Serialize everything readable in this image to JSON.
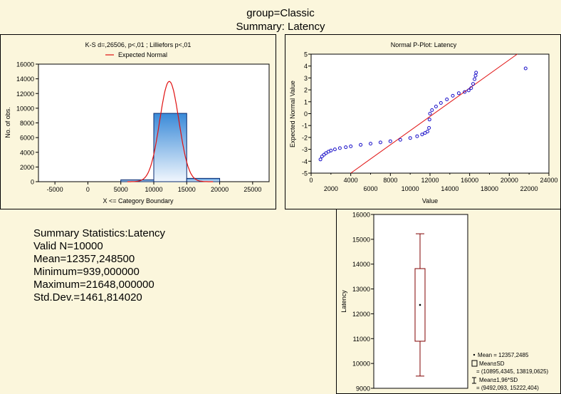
{
  "header": {
    "group": "group=Classic",
    "summary": "Summary: Latency"
  },
  "colors": {
    "bar_top": "#3a8ad8",
    "bar_bottom": "#f0f6fd",
    "curve": "#e01010",
    "points": "#1a10c8",
    "line": "#e01010",
    "box": "#800000"
  },
  "chart_data": [
    {
      "type": "bar",
      "title": "K-S d=,26506, p<,01 ; Lilliefors p<,01",
      "xlabel": "X <= Category Boundary",
      "ylabel": "No. of obs.",
      "legend": "Expected Normal",
      "legend_placement": "top",
      "grid": false,
      "xlim": [
        -7500,
        27500
      ],
      "ylim": [
        0,
        16000
      ],
      "xticks": [
        "-5000",
        "0",
        "5000",
        "10000",
        "15000",
        "20000",
        "25000"
      ],
      "yticks": [
        "0",
        "2000",
        "4000",
        "6000",
        "8000",
        "10000",
        "12000",
        "14000",
        "16000"
      ],
      "bins": [
        {
          "from": 5000,
          "to": 10000,
          "value": 250
        },
        {
          "from": 10000,
          "to": 15000,
          "value": 9300
        },
        {
          "from": 15000,
          "to": 20000,
          "value": 450
        }
      ],
      "expected_normal": {
        "mean": 12357.2485,
        "sd": 1461.81402,
        "n": 10000,
        "bin_width": 5000
      }
    },
    {
      "type": "scatter",
      "title": "Normal P-Plot: Latency",
      "xlabel": "Value",
      "ylabel": "Expected Normal Value",
      "grid": false,
      "xlim": [
        0,
        24000
      ],
      "ylim": [
        -5,
        5
      ],
      "xticks_top": [
        "0",
        "4000",
        "8000",
        "12000",
        "16000",
        "20000",
        "24000"
      ],
      "xticks_bottom": [
        "2000",
        "6000",
        "10000",
        "14000",
        "18000",
        "22000"
      ],
      "yticks": [
        "-5",
        "-4",
        "-3",
        "-2",
        "-1",
        "0",
        "1",
        "2",
        "3",
        "4",
        "5"
      ],
      "points": [
        [
          939,
          -3.85
        ],
        [
          1100,
          -3.6
        ],
        [
          1300,
          -3.45
        ],
        [
          1500,
          -3.32
        ],
        [
          1750,
          -3.2
        ],
        [
          2000,
          -3.1
        ],
        [
          2400,
          -3.0
        ],
        [
          2900,
          -2.9
        ],
        [
          3500,
          -2.82
        ],
        [
          4000,
          -2.75
        ],
        [
          5000,
          -2.62
        ],
        [
          6000,
          -2.52
        ],
        [
          7000,
          -2.42
        ],
        [
          8000,
          -2.32
        ],
        [
          9000,
          -2.2
        ],
        [
          10000,
          -2.05
        ],
        [
          10700,
          -1.9
        ],
        [
          11200,
          -1.75
        ],
        [
          11500,
          -1.62
        ],
        [
          11750,
          -1.5
        ],
        [
          11900,
          -1.2
        ],
        [
          11950,
          -0.5
        ],
        [
          12000,
          0.0
        ],
        [
          12200,
          0.3
        ],
        [
          12600,
          0.6
        ],
        [
          13100,
          0.9
        ],
        [
          13700,
          1.2
        ],
        [
          14300,
          1.5
        ],
        [
          14900,
          1.72
        ],
        [
          15500,
          1.82
        ],
        [
          15900,
          1.95
        ],
        [
          16150,
          2.15
        ],
        [
          16350,
          2.5
        ],
        [
          16500,
          2.9
        ],
        [
          16600,
          3.2
        ],
        [
          16650,
          3.45
        ],
        [
          21648,
          3.8
        ]
      ],
      "reference_line": [
        [
          4000,
          -5.0
        ],
        [
          20800,
          5.0
        ]
      ]
    },
    {
      "type": "box",
      "ylabel": "Latency",
      "ylim": [
        9000,
        16000
      ],
      "yticks": [
        "9000",
        "10000",
        "11000",
        "12000",
        "13000",
        "14000",
        "15000",
        "16000"
      ],
      "mean": 12357.2485,
      "box": [
        10895.4345,
        13819.0625
      ],
      "whiskers": [
        9492.093,
        15222.404
      ],
      "legend": [
        {
          "marker": "dot",
          "text": "Mean = 12357,2485"
        },
        {
          "marker": "box",
          "text": "Mean±SD",
          "sub": "= (10895,4345, 13819,0625)"
        },
        {
          "marker": "whisker",
          "text": "Mean±1,96*SD",
          "sub": "= (9492,093, 15222,404)"
        }
      ]
    }
  ],
  "stats": {
    "heading": "Summary Statistics:Latency",
    "lines": [
      "Valid N=10000",
      "Mean=12357,248500",
      "Minimum=939,000000",
      "Maximum=21648,000000",
      "Std.Dev.=1461,814020"
    ]
  }
}
